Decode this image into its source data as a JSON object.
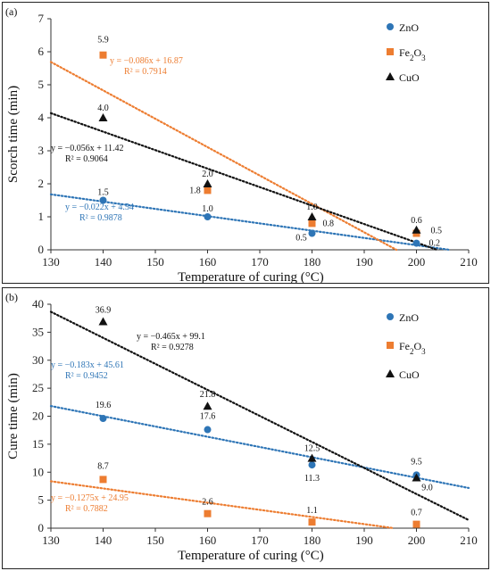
{
  "chart_data": [
    {
      "panel_label": "(a)",
      "type": "scatter",
      "xlabel": "Temperature of curing (°C)",
      "ylabel": "Scorch time (min)",
      "xlim": [
        130,
        210
      ],
      "ylim": [
        0,
        7
      ],
      "x_ticks": [
        130,
        140,
        150,
        160,
        170,
        180,
        190,
        200,
        210
      ],
      "y_ticks": [
        0,
        1,
        2,
        3,
        4,
        5,
        6,
        7
      ],
      "legend_position": "top-right",
      "series": [
        {
          "name": "ZnO",
          "marker": "circle",
          "color": "#2e75b6",
          "x": [
            140,
            160,
            180,
            200
          ],
          "y": [
            1.5,
            1.0,
            0.5,
            0.2
          ],
          "labels": [
            "1.5",
            "1.0",
            "0.5",
            "0.2"
          ],
          "trend": {
            "equation": "y = −0.022x + 4.54",
            "r2": "R² = 0.9878",
            "slope": -0.022,
            "intercept": 4.54
          }
        },
        {
          "name": "Fe2O3",
          "marker": "square",
          "color": "#ed7d31",
          "x": [
            140,
            160,
            180,
            200
          ],
          "y": [
            5.9,
            1.8,
            0.8,
            0.5
          ],
          "labels": [
            "5.9",
            "1.8",
            "0.8",
            "0.5"
          ],
          "trend": {
            "equation": "y = −0.086x + 16.87",
            "r2": "R² = 0.7914",
            "slope": -0.086,
            "intercept": 16.87
          }
        },
        {
          "name": "CuO",
          "marker": "triangle",
          "color": "#111111",
          "x": [
            140,
            160,
            180,
            200
          ],
          "y": [
            4.0,
            2.0,
            1.0,
            0.6
          ],
          "labels": [
            "4.0",
            "2.0",
            "1.0",
            "0.6"
          ],
          "trend": {
            "equation": "y = −0.056x + 11.42",
            "r2": "R² = 0.9064",
            "slope": -0.056,
            "intercept": 11.42
          }
        }
      ]
    },
    {
      "panel_label": "(b)",
      "type": "scatter",
      "xlabel": "Temperature of curing (°C)",
      "ylabel": "Cure time (min)",
      "xlim": [
        130,
        210
      ],
      "ylim": [
        0,
        40
      ],
      "x_ticks": [
        130,
        140,
        150,
        160,
        170,
        180,
        190,
        200,
        210
      ],
      "y_ticks": [
        0,
        5,
        10,
        15,
        20,
        25,
        30,
        35,
        40
      ],
      "legend_position": "top-right",
      "series": [
        {
          "name": "ZnO",
          "marker": "circle",
          "color": "#2e75b6",
          "x": [
            140,
            160,
            180,
            200
          ],
          "y": [
            19.6,
            17.6,
            11.3,
            9.5
          ],
          "labels": [
            "19.6",
            "17.6",
            "11.3",
            "9.5"
          ],
          "trend": {
            "equation": "y = −0.183x + 45.61",
            "r2": "R² = 0.9452",
            "slope": -0.183,
            "intercept": 45.61
          }
        },
        {
          "name": "Fe2O3",
          "marker": "square",
          "color": "#ed7d31",
          "x": [
            140,
            160,
            180,
            200
          ],
          "y": [
            8.7,
            2.6,
            1.1,
            0.7
          ],
          "labels": [
            "8.7",
            "2.6",
            "1.1",
            "0.7"
          ],
          "trend": {
            "equation": "y = −0.1275x + 24.95",
            "r2": "R² = 0.7882",
            "slope": -0.1275,
            "intercept": 24.95
          }
        },
        {
          "name": "CuO",
          "marker": "triangle",
          "color": "#111111",
          "x": [
            140,
            160,
            180,
            200
          ],
          "y": [
            36.9,
            21.8,
            12.5,
            9.0
          ],
          "labels": [
            "36.9",
            "21.8",
            "12.5",
            "9.0"
          ],
          "trend": {
            "equation": "y = −0.465x + 99.1",
            "r2": "R² = 0.9278",
            "slope": -0.465,
            "intercept": 99.1
          }
        }
      ]
    }
  ]
}
